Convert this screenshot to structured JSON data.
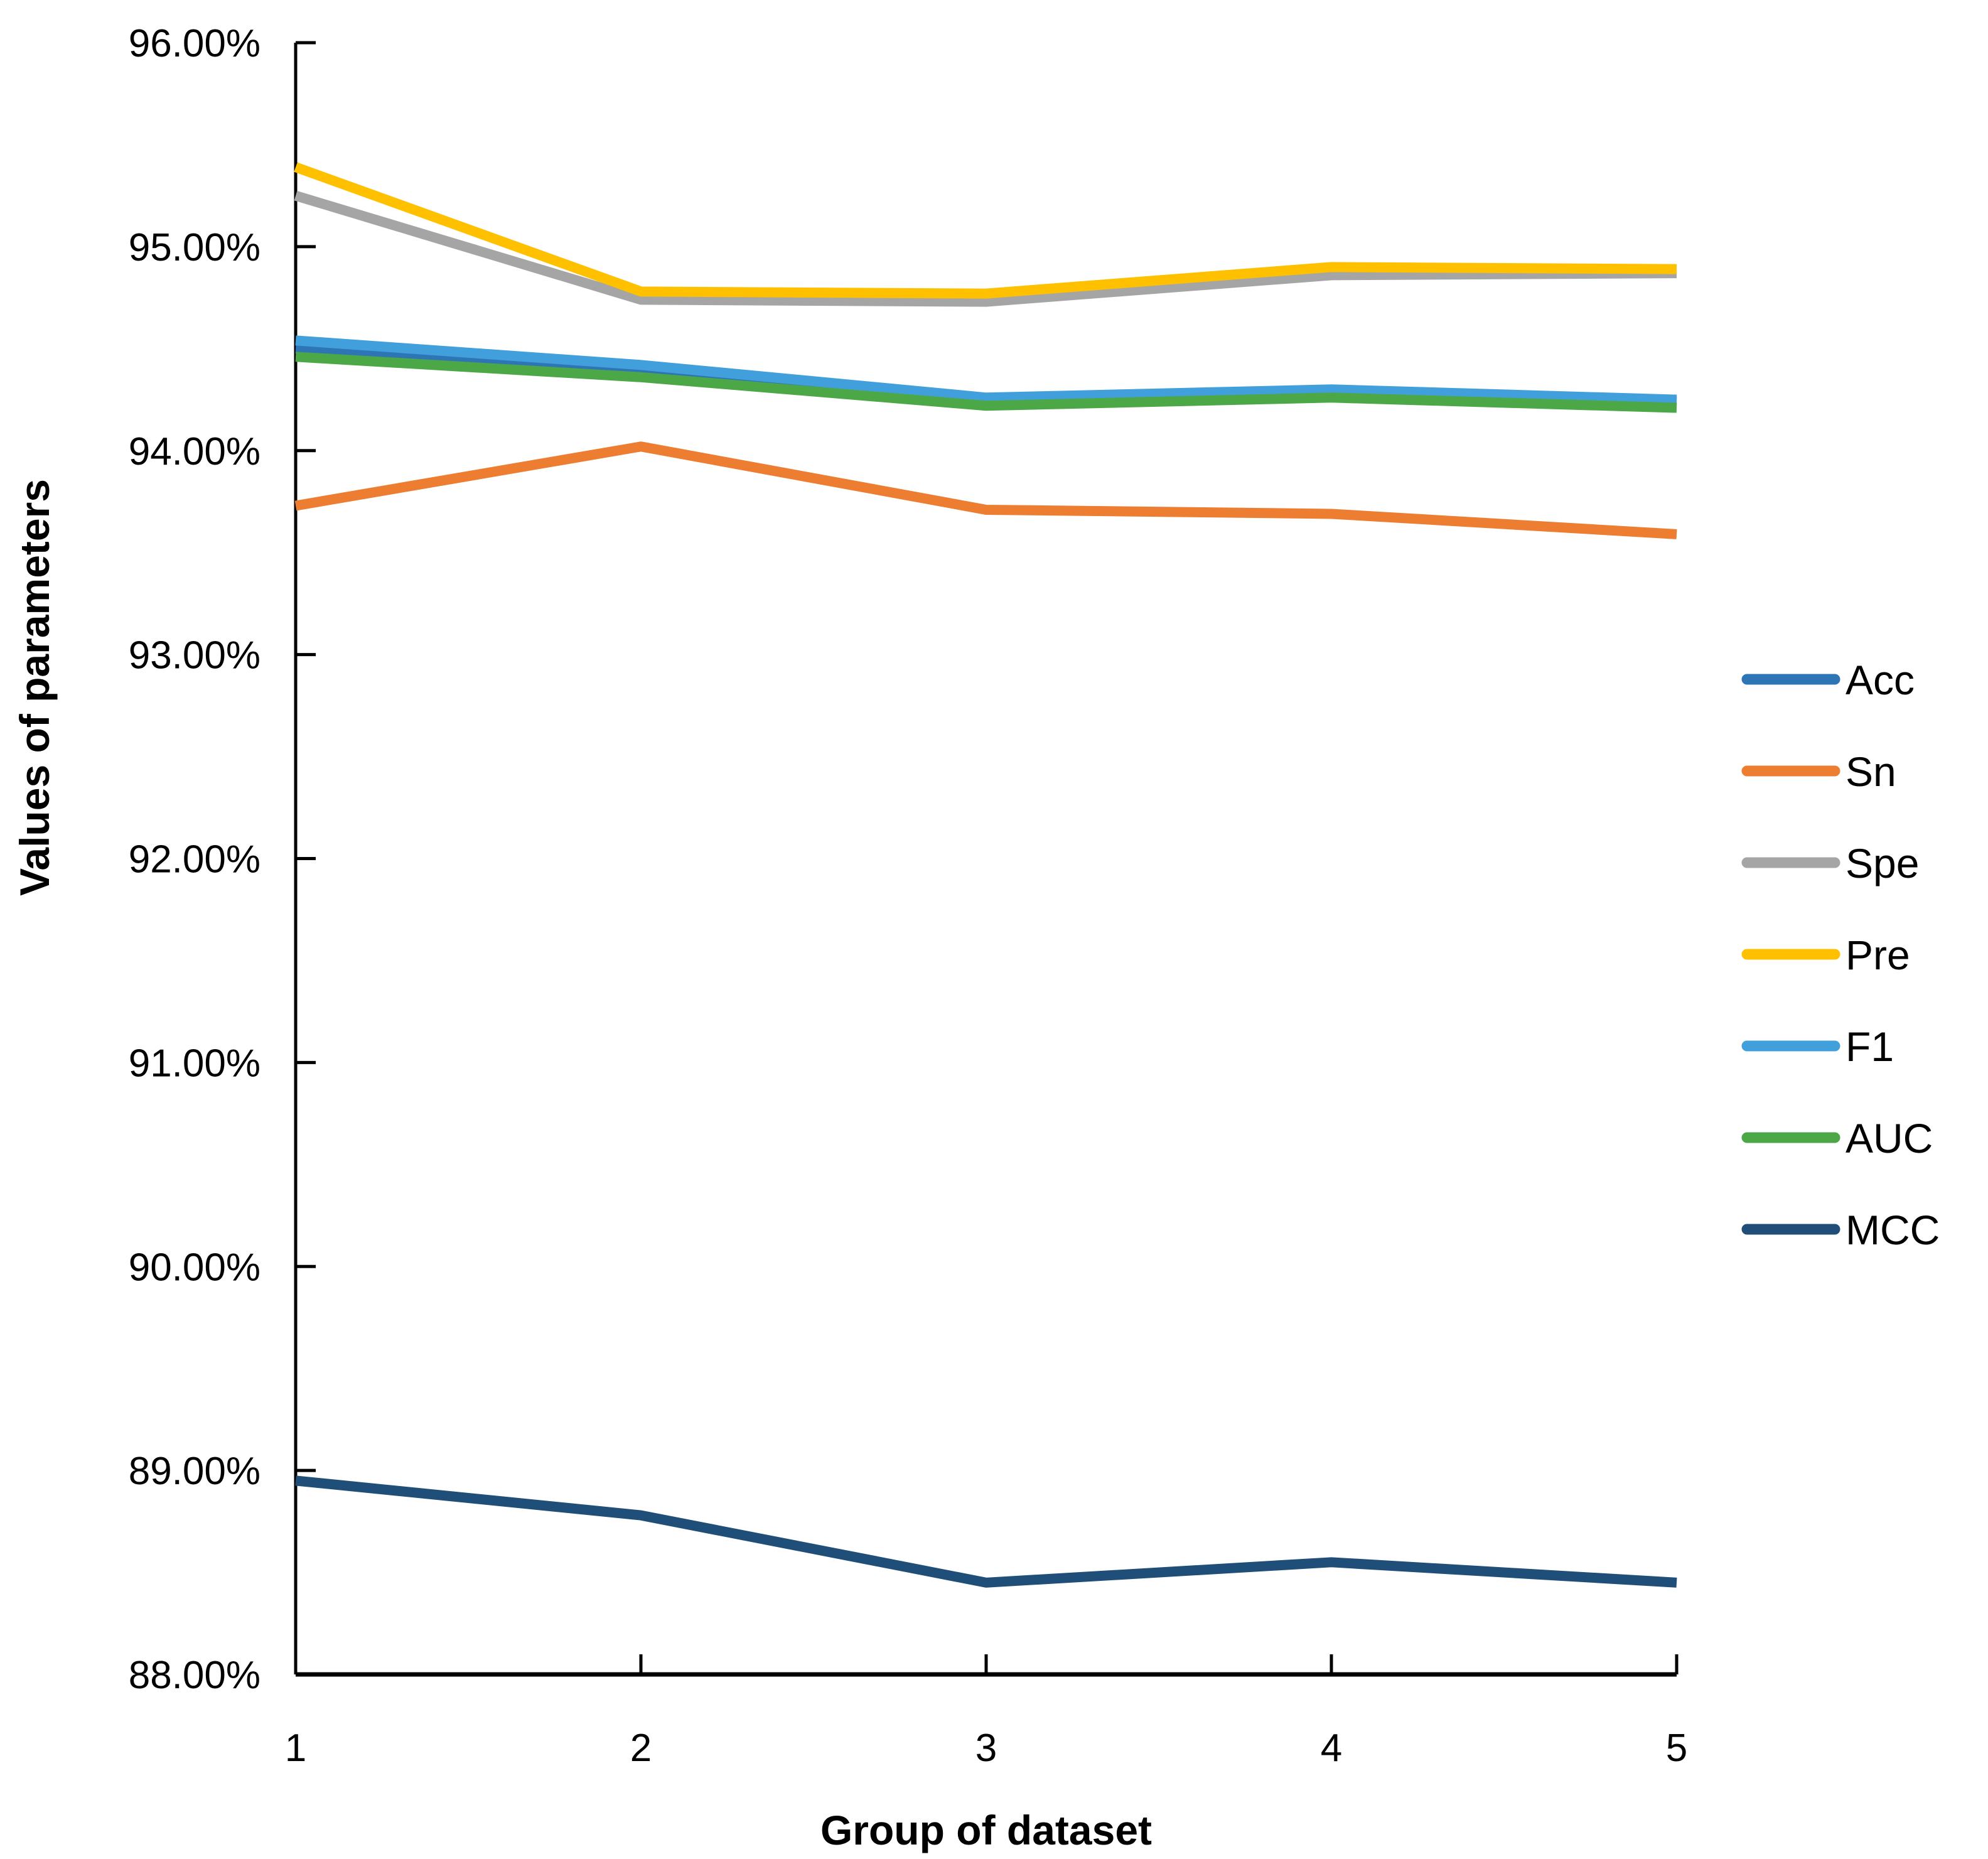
{
  "chart_data": {
    "type": "line",
    "title": "",
    "xlabel": "Group of dataset",
    "ylabel": "Values of parameters",
    "x": [
      1,
      2,
      3,
      4,
      5
    ],
    "x_tick_labels": [
      "1",
      "2",
      "3",
      "4",
      "5"
    ],
    "ylim": [
      88,
      96
    ],
    "y_tick_labels": [
      "88.00%",
      "89.00%",
      "90.00%",
      "91.00%",
      "92.00%",
      "93.00%",
      "94.00%",
      "95.00%",
      "96.00%"
    ],
    "grid": false,
    "legend_position": "right",
    "axis_color": "#000000",
    "series": [
      {
        "name": "Acc",
        "color": "#2E75B6",
        "values": [
          94.5,
          94.4,
          94.25,
          94.29,
          94.24
        ]
      },
      {
        "name": "Sn",
        "color": "#ED7D31",
        "values": [
          93.73,
          94.02,
          93.71,
          93.69,
          93.59
        ]
      },
      {
        "name": "Spe",
        "color": "#A5A5A5",
        "values": [
          95.25,
          94.74,
          94.73,
          94.86,
          94.87
        ]
      },
      {
        "name": "Pre",
        "color": "#FFC000",
        "values": [
          95.39,
          94.78,
          94.77,
          94.9,
          94.89
        ]
      },
      {
        "name": "F1",
        "color": "#41A0DC",
        "values": [
          94.54,
          94.42,
          94.26,
          94.3,
          94.25
        ]
      },
      {
        "name": "AUC",
        "color": "#4CA747",
        "values": [
          94.46,
          94.36,
          94.22,
          94.26,
          94.21
        ]
      },
      {
        "name": "MCC",
        "color": "#1F4E79",
        "values": [
          88.95,
          88.78,
          88.45,
          88.55,
          88.45
        ]
      }
    ]
  }
}
